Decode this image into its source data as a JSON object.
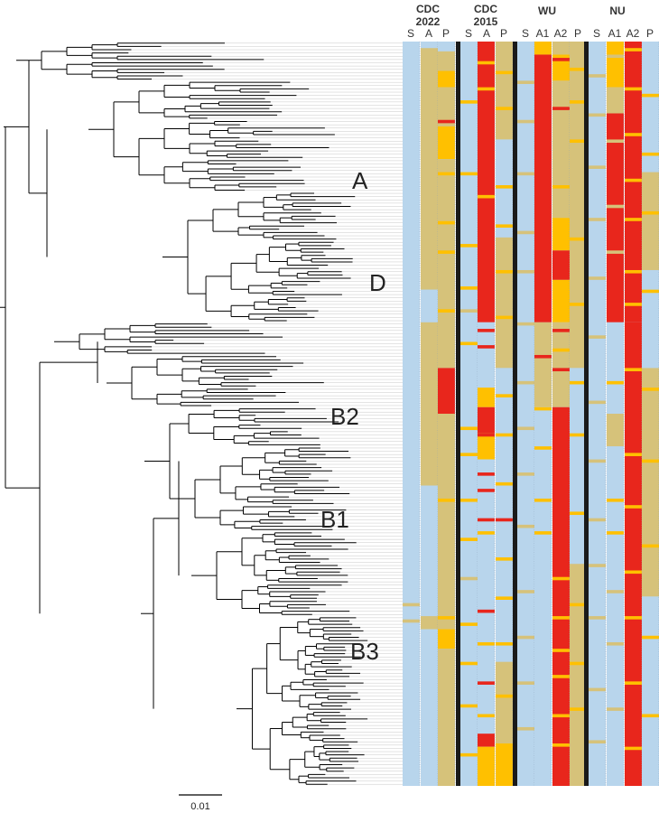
{
  "figure": {
    "colors": {
      "S": "#b8d5ec",
      "low": "#d6c27a",
      "mid": "#ffc000",
      "high": "#e8261c",
      "separator": "#1a1a1a",
      "branch": "#000000",
      "tip": "#c8c8c8"
    },
    "groups": [
      {
        "name": "CDC\n2022",
        "line1": "CDC",
        "line2": "2022",
        "cols": [
          "S",
          "A",
          "P"
        ]
      },
      {
        "name": "CDC\n2015",
        "line1": "CDC",
        "line2": "2015",
        "cols": [
          "S",
          "A",
          "P"
        ]
      },
      {
        "name": "WU",
        "line1": "WU",
        "line2": "",
        "cols": [
          "S",
          "A1",
          "A2",
          "P"
        ]
      },
      {
        "name": "NU",
        "line1": "NU",
        "line2": "",
        "cols": [
          "S",
          "A1",
          "A2",
          "P"
        ]
      }
    ],
    "clades": [
      "A",
      "D",
      "B2",
      "B1",
      "B3"
    ],
    "scale_bar": {
      "label": "0.01"
    },
    "tips": 228,
    "column_blocks": [
      [
        [
          "S",
          0,
          228
        ]
      ],
      [
        [
          "S",
          0,
          2
        ],
        [
          "low",
          2,
          76
        ],
        [
          "S",
          76,
          86
        ],
        [
          "low",
          86,
          136
        ],
        [
          "S",
          136,
          176
        ],
        [
          "low",
          176,
          180
        ],
        [
          "S",
          180,
          228
        ]
      ],
      [
        [
          "S",
          0,
          3
        ],
        [
          "low",
          3,
          9
        ],
        [
          "mid",
          9,
          14
        ],
        [
          "low",
          14,
          26
        ],
        [
          "mid",
          26,
          36
        ],
        [
          "low",
          36,
          100
        ],
        [
          "high",
          100,
          114
        ],
        [
          "low",
          114,
          180
        ],
        [
          "mid",
          180,
          186
        ],
        [
          "low",
          186,
          228
        ]
      ],
      [
        [
          "S",
          0,
          228
        ]
      ],
      [
        [
          "high",
          0,
          86
        ],
        [
          "S",
          86,
          106
        ],
        [
          "mid",
          106,
          112
        ],
        [
          "high",
          112,
          120
        ],
        [
          "mid",
          120,
          128
        ],
        [
          "S",
          128,
          212
        ],
        [
          "high",
          212,
          216
        ],
        [
          "mid",
          216,
          228
        ]
      ],
      [
        [
          "low",
          0,
          30
        ],
        [
          "S",
          30,
          60
        ],
        [
          "low",
          60,
          100
        ],
        [
          "S",
          100,
          190
        ],
        [
          "low",
          190,
          215
        ],
        [
          "mid",
          215,
          228
        ]
      ],
      [
        [
          "S",
          0,
          228
        ]
      ],
      [
        [
          "mid",
          0,
          4
        ],
        [
          "high",
          4,
          86
        ],
        [
          "low",
          86,
          112
        ],
        [
          "S",
          112,
          228
        ]
      ],
      [
        [
          "low",
          0,
          4
        ],
        [
          "mid",
          4,
          12
        ],
        [
          "low",
          12,
          54
        ],
        [
          "mid",
          54,
          64
        ],
        [
          "high",
          64,
          73
        ],
        [
          "mid",
          73,
          86
        ],
        [
          "low",
          86,
          112
        ],
        [
          "high",
          112,
          228
        ]
      ],
      [
        [
          "low",
          0,
          100
        ],
        [
          "S",
          100,
          160
        ],
        [
          "low",
          160,
          228
        ]
      ],
      [
        [
          "S",
          0,
          228
        ]
      ],
      [
        [
          "mid",
          0,
          14
        ],
        [
          "low",
          14,
          22
        ],
        [
          "high",
          22,
          86
        ],
        [
          "S",
          86,
          114
        ],
        [
          "low",
          114,
          124
        ],
        [
          "S",
          124,
          228
        ]
      ],
      [
        [
          "high",
          0,
          86
        ],
        [
          "high",
          86,
          228
        ]
      ],
      [
        [
          "S",
          0,
          40
        ],
        [
          "low",
          40,
          70
        ],
        [
          "S",
          70,
          100
        ],
        [
          "low",
          100,
          170
        ],
        [
          "S",
          170,
          228
        ]
      ]
    ],
    "column_stripes": [
      [
        [
          172,
          "low"
        ],
        [
          177,
          "low"
        ]
      ],
      [],
      [
        [
          9,
          "mid"
        ],
        [
          24,
          "high"
        ],
        [
          40,
          "mid"
        ],
        [
          55,
          "mid"
        ],
        [
          64,
          "mid"
        ],
        [
          82,
          "mid"
        ],
        [
          140,
          "mid"
        ],
        [
          176,
          "mid"
        ],
        [
          222,
          "low"
        ]
      ],
      [
        [
          18,
          "mid"
        ],
        [
          40,
          "mid"
        ],
        [
          62,
          "mid"
        ],
        [
          75,
          "mid"
        ],
        [
          82,
          "low"
        ],
        [
          92,
          "mid"
        ],
        [
          118,
          "mid"
        ],
        [
          126,
          "mid"
        ],
        [
          140,
          "mid"
        ],
        [
          152,
          "mid"
        ],
        [
          164,
          "low"
        ],
        [
          178,
          "mid"
        ],
        [
          190,
          "mid"
        ],
        [
          203,
          "mid"
        ],
        [
          218,
          "mid"
        ]
      ],
      [
        [
          6,
          "mid"
        ],
        [
          14,
          "mid"
        ],
        [
          47,
          "mid"
        ],
        [
          88,
          "high"
        ],
        [
          93,
          "high"
        ],
        [
          120,
          "high"
        ],
        [
          132,
          "high"
        ],
        [
          137,
          "high"
        ],
        [
          146,
          "high"
        ],
        [
          150,
          "mid"
        ],
        [
          174,
          "high"
        ],
        [
          184,
          "mid"
        ],
        [
          196,
          "high"
        ],
        [
          206,
          "mid"
        ]
      ],
      [
        [
          9,
          "mid"
        ],
        [
          20,
          "mid"
        ],
        [
          44,
          "mid"
        ],
        [
          56,
          "mid"
        ],
        [
          70,
          "mid"
        ],
        [
          84,
          "mid"
        ],
        [
          108,
          "mid"
        ],
        [
          120,
          "mid"
        ],
        [
          135,
          "mid"
        ],
        [
          146,
          "high"
        ],
        [
          158,
          "mid"
        ],
        [
          170,
          "mid"
        ],
        [
          184,
          "mid"
        ],
        [
          200,
          "mid"
        ]
      ],
      [
        [
          12,
          "low"
        ],
        [
          24,
          "low"
        ],
        [
          40,
          "low"
        ],
        [
          58,
          "low"
        ],
        [
          70,
          "low"
        ],
        [
          86,
          "low"
        ],
        [
          104,
          "low"
        ],
        [
          118,
          "low"
        ],
        [
          132,
          "low"
        ],
        [
          148,
          "low"
        ],
        [
          168,
          "low"
        ],
        [
          182,
          "low"
        ],
        [
          196,
          "low"
        ],
        [
          210,
          "low"
        ]
      ],
      [
        [
          30,
          "high"
        ],
        [
          50,
          "high"
        ],
        [
          96,
          "high"
        ],
        [
          112,
          "mid"
        ],
        [
          124,
          "mid"
        ],
        [
          140,
          "mid"
        ],
        [
          150,
          "mid"
        ]
      ],
      [
        [
          5,
          "high"
        ],
        [
          20,
          "high"
        ],
        [
          44,
          "mid"
        ],
        [
          88,
          "high"
        ],
        [
          94,
          "mid"
        ],
        [
          100,
          "high"
        ],
        [
          164,
          "mid"
        ],
        [
          176,
          "mid"
        ],
        [
          186,
          "mid"
        ],
        [
          194,
          "mid"
        ],
        [
          206,
          "mid"
        ],
        [
          215,
          "mid"
        ]
      ],
      [
        [
          8,
          "mid"
        ],
        [
          18,
          "mid"
        ],
        [
          30,
          "mid"
        ],
        [
          60,
          "mid"
        ],
        [
          80,
          "mid"
        ],
        [
          104,
          "mid"
        ],
        [
          120,
          "mid"
        ],
        [
          144,
          "mid"
        ],
        [
          172,
          "mid"
        ],
        [
          190,
          "mid"
        ],
        [
          204,
          "mid"
        ]
      ],
      [
        [
          10,
          "low"
        ],
        [
          22,
          "low"
        ],
        [
          38,
          "low"
        ],
        [
          54,
          "low"
        ],
        [
          72,
          "low"
        ],
        [
          90,
          "low"
        ],
        [
          110,
          "low"
        ],
        [
          128,
          "low"
        ],
        [
          146,
          "low"
        ],
        [
          160,
          "low"
        ],
        [
          176,
          "low"
        ],
        [
          198,
          "low"
        ],
        [
          214,
          "low"
        ]
      ],
      [
        [
          4,
          "low"
        ],
        [
          30,
          "low"
        ],
        [
          50,
          "low"
        ],
        [
          64,
          "low"
        ],
        [
          104,
          "mid"
        ],
        [
          140,
          "mid"
        ],
        [
          150,
          "mid"
        ],
        [
          168,
          "low"
        ],
        [
          184,
          "low"
        ],
        [
          204,
          "low"
        ]
      ],
      [
        [
          2,
          "mid"
        ],
        [
          14,
          "mid"
        ],
        [
          28,
          "mid"
        ],
        [
          42,
          "mid"
        ],
        [
          54,
          "mid"
        ],
        [
          70,
          "mid"
        ],
        [
          80,
          "mid"
        ],
        [
          100,
          "mid"
        ],
        [
          126,
          "mid"
        ],
        [
          142,
          "mid"
        ],
        [
          162,
          "mid"
        ],
        [
          176,
          "mid"
        ],
        [
          196,
          "mid"
        ],
        [
          216,
          "mid"
        ]
      ],
      [
        [
          16,
          "mid"
        ],
        [
          34,
          "mid"
        ],
        [
          52,
          "mid"
        ],
        [
          76,
          "mid"
        ],
        [
          106,
          "mid"
        ],
        [
          128,
          "mid"
        ],
        [
          154,
          "mid"
        ],
        [
          182,
          "mid"
        ],
        [
          206,
          "mid"
        ]
      ]
    ]
  }
}
